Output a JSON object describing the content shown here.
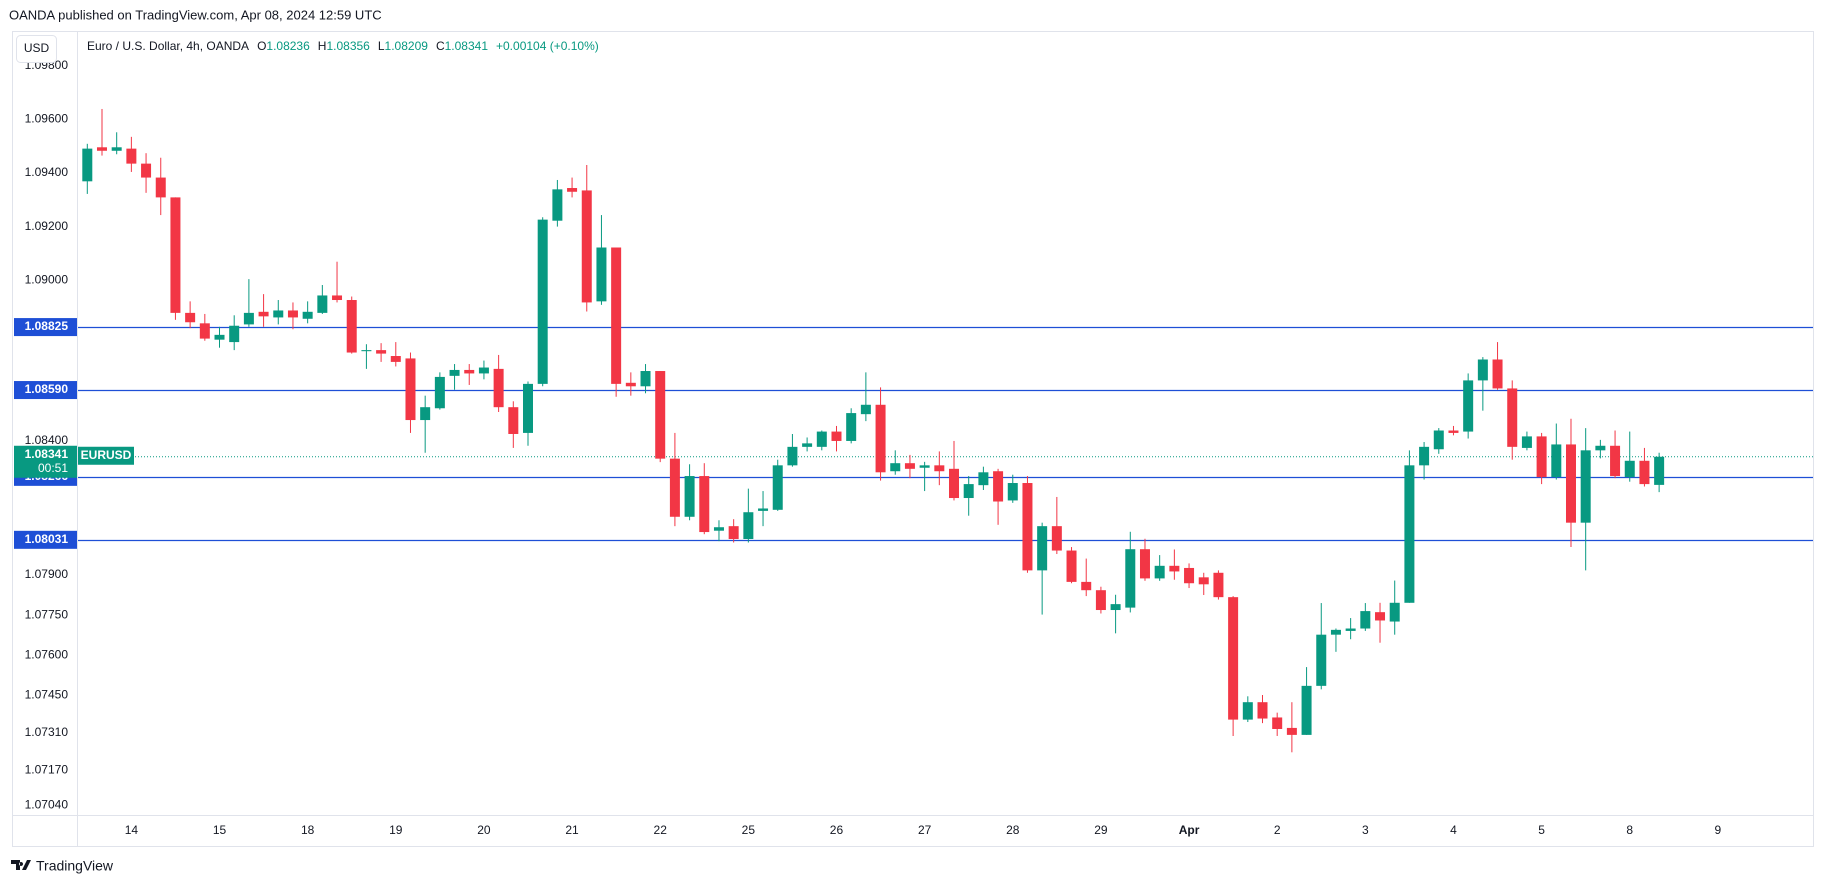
{
  "header": {
    "published": "OANDA published on TradingView.com, Apr 08, 2024 12:59 UTC"
  },
  "currency_button": "USD",
  "footer": {
    "brand": "TradingView"
  },
  "chart_data": {
    "type": "candlestick",
    "title": "Euro / U.S. Dollar, 4h, OANDA",
    "legend": {
      "o_label": "O",
      "o": 1.08236,
      "h_label": "H",
      "h": 1.08356,
      "l_label": "L",
      "l": 1.08209,
      "c_label": "C",
      "c": 1.08341,
      "change": "+0.00104 (+0.10%)"
    },
    "up_color": "#089981",
    "down_color": "#f23645",
    "level_color": "#1e4fd6",
    "ylim": [
      1.07004,
      1.0993
    ],
    "yticks": [
      {
        "value": 1.098,
        "label": "1.09800"
      },
      {
        "value": 1.096,
        "label": "1.09600"
      },
      {
        "value": 1.094,
        "label": "1.09400"
      },
      {
        "value": 1.092,
        "label": "1.09200"
      },
      {
        "value": 1.09,
        "label": "1.09000"
      },
      {
        "value": 1.084,
        "label": "1.08400"
      },
      {
        "value": 1.079,
        "label": "1.07900"
      },
      {
        "value": 1.0775,
        "label": "1.07750"
      },
      {
        "value": 1.076,
        "label": "1.07600"
      },
      {
        "value": 1.0745,
        "label": "1.07450"
      },
      {
        "value": 1.0731,
        "label": "1.07310"
      },
      {
        "value": 1.0717,
        "label": "1.07170"
      },
      {
        "value": 1.0704,
        "label": "1.07040"
      }
    ],
    "levels": [
      1.08825,
      {
        "value": 1.0859,
        "label": "1.08590"
      },
      1.08266,
      1.08031
    ],
    "last_price": 1.08341,
    "countdown": "00:51",
    "symbol": "EURUSD",
    "categories": [
      null,
      null,
      null,
      "14",
      null,
      null,
      null,
      null,
      null,
      "15",
      null,
      null,
      null,
      null,
      null,
      "18",
      null,
      null,
      null,
      null,
      null,
      "19",
      null,
      null,
      null,
      null,
      null,
      "20",
      null,
      null,
      null,
      null,
      null,
      "21",
      null,
      null,
      null,
      null,
      null,
      "22",
      null,
      null,
      null,
      null,
      null,
      "25",
      null,
      null,
      null,
      null,
      null,
      "26",
      null,
      null,
      null,
      null,
      null,
      "27",
      null,
      null,
      null,
      null,
      null,
      "28",
      null,
      null,
      null,
      null,
      null,
      "29",
      null,
      null,
      null,
      null,
      null,
      "Apr",
      null,
      null,
      null,
      null,
      null,
      "2",
      null,
      null,
      null,
      null,
      null,
      "3",
      null,
      null,
      null,
      null,
      null,
      "4",
      null,
      null,
      null,
      null,
      null,
      "5",
      null,
      null,
      null,
      null,
      null,
      "8",
      null,
      null,
      null,
      null,
      null,
      "9",
      null,
      null
    ],
    "open": [
      1.09369,
      1.09496,
      1.09483,
      1.09491,
      1.09435,
      1.09383,
      1.09309,
      1.08878,
      1.08839,
      1.08778,
      1.08769,
      1.08835,
      1.08882,
      1.08861,
      1.08887,
      1.08856,
      1.08878,
      1.08943,
      1.08926,
      1.08735,
      1.08739,
      1.08717,
      1.08708,
      1.08478,
      1.08522,
      1.08643,
      1.08665,
      1.08652,
      1.08669,
      1.08526,
      1.0843,
      1.08613,
      1.09222,
      1.09344,
      1.09335,
      1.08921,
      1.09122,
      1.08617,
      1.08604,
      1.08661,
      1.08334,
      1.08117,
      1.08269,
      1.08065,
      1.08082,
      1.08034,
      1.08139,
      1.08143,
      1.08309,
      1.08378,
      1.08378,
      1.08435,
      1.084,
      1.085,
      1.08535,
      1.08287,
      1.08317,
      1.083,
      1.08309,
      1.08296,
      1.08187,
      1.08235,
      1.08287,
      1.08178,
      1.08243,
      1.07917,
      1.08082,
      1.07991,
      1.07874,
      1.07843,
      1.07769,
      1.07778,
      1.07996,
      1.07887,
      1.07934,
      1.07926,
      1.07891,
      1.07908,
      1.07817,
      1.0736,
      1.07425,
      1.07368,
      1.07329,
      1.07303,
      1.07486,
      1.07677,
      1.07691,
      1.077,
      1.07761,
      1.07726,
      1.07796,
      1.08309,
      1.08369,
      1.08439,
      1.08435,
      1.08626,
      1.08704,
      1.08596,
      1.08374,
      1.08417,
      1.08265,
      1.08387,
      1.08095,
      1.08365,
      1.08382,
      1.08265,
      1.08326,
      1.08236,
      null,
      null,
      null,
      null,
      null,
      null
    ],
    "high": [
      1.09509,
      1.09639,
      1.09552,
      1.09535,
      1.09474,
      1.09457,
      1.09309,
      1.08921,
      1.08874,
      1.08826,
      1.08869,
      1.09004,
      1.08948,
      1.08926,
      1.08917,
      1.08921,
      1.08982,
      1.09069,
      1.08939,
      1.08761,
      1.08765,
      1.08769,
      1.0873,
      1.08569,
      1.08656,
      1.08687,
      1.08687,
      1.087,
      1.08721,
      1.08548,
      1.08622,
      1.09235,
      1.09374,
      1.09383,
      1.0943,
      1.09243,
      1.09122,
      1.08656,
      1.08687,
      1.08661,
      1.0843,
      1.08313,
      1.08317,
      1.08104,
      1.08108,
      1.08222,
      1.08213,
      1.0833,
      1.08426,
      1.08413,
      1.08439,
      1.08456,
      1.08522,
      1.08656,
      1.086,
      1.08365,
      1.08348,
      1.08322,
      1.08361,
      1.084,
      1.08269,
      1.08304,
      1.08296,
      1.08274,
      1.08269,
      1.08095,
      1.08191,
      1.08004,
      1.07961,
      1.07856,
      1.07826,
      1.08061,
      1.08035,
      1.07974,
      1.07995,
      1.07943,
      1.07908,
      1.07917,
      1.07821,
      1.07447,
      1.07452,
      1.07386,
      1.07425,
      1.07556,
      1.07795,
      1.077,
      1.07739,
      1.07795,
      1.07796,
      1.07879,
      1.08365,
      1.08396,
      1.08448,
      1.08456,
      1.08652,
      1.08713,
      1.08769,
      1.08626,
      1.08435,
      1.0843,
      1.08465,
      1.08483,
      1.08448,
      1.08404,
      1.08439,
      1.08435,
      1.08374,
      1.08356,
      null,
      null,
      null,
      null,
      null,
      null
    ],
    "low": [
      1.09322,
      1.09465,
      1.0947,
      1.09404,
      1.09326,
      1.09243,
      1.08852,
      1.08821,
      1.08774,
      1.08748,
      1.08739,
      1.08826,
      1.08826,
      1.08835,
      1.08817,
      1.08839,
      1.08874,
      1.08917,
      1.08726,
      1.08669,
      1.08695,
      1.08678,
      1.0843,
      1.08356,
      1.08517,
      1.08591,
      1.08609,
      1.0863,
      1.08508,
      1.08374,
      1.08382,
      1.08604,
      1.092,
      1.09309,
      1.08883,
      1.08908,
      1.08565,
      1.08569,
      1.08578,
      1.08321,
      1.08082,
      1.08104,
      1.08052,
      1.08026,
      1.08021,
      1.08021,
      1.08082,
      1.08139,
      1.08304,
      1.08361,
      1.08365,
      1.08361,
      1.08391,
      1.08474,
      1.08252,
      1.08274,
      1.08261,
      1.08213,
      1.08235,
      1.08178,
      1.08121,
      1.08217,
      1.08087,
      1.08169,
      1.07908,
      1.07752,
      1.07978,
      1.07869,
      1.07821,
      1.07756,
      1.07682,
      1.0776,
      1.07878,
      1.07878,
      1.07882,
      1.07851,
      1.07825,
      1.07808,
      1.07299,
      1.07351,
      1.07347,
      1.07299,
      1.07238,
      1.07303,
      1.07473,
      1.07613,
      1.0766,
      1.07691,
      1.07647,
      1.07677,
      1.07796,
      1.08256,
      1.08352,
      1.08421,
      1.08409,
      1.08513,
      1.08591,
      1.0833,
      1.08365,
      1.08239,
      1.08256,
      1.08004,
      1.07917,
      1.08335,
      1.08261,
      1.08248,
      1.0823,
      1.08209,
      null,
      null,
      null,
      null,
      null,
      null
    ],
    "close": [
      1.09491,
      1.09483,
      1.09496,
      1.09435,
      1.09383,
      1.09309,
      1.08878,
      1.08843,
      1.08782,
      1.08796,
      1.0883,
      1.08878,
      1.08865,
      1.08887,
      1.08861,
      1.08882,
      1.08943,
      1.08926,
      1.0873,
      1.08739,
      1.08726,
      1.08695,
      1.08478,
      1.08526,
      1.08639,
      1.08665,
      1.08652,
      1.08674,
      1.08526,
      1.08426,
      1.08613,
      1.09226,
      1.09339,
      1.0933,
      1.08917,
      1.09122,
      1.08613,
      1.08604,
      1.08661,
      1.08334,
      1.08117,
      1.08269,
      1.0806,
      1.08078,
      1.08034,
      1.08134,
      1.08148,
      1.08309,
      1.08378,
      1.08391,
      1.08435,
      1.084,
      1.08504,
      1.08535,
      1.08283,
      1.08317,
      1.08296,
      1.08309,
      1.08287,
      1.08187,
      1.08239,
      1.08283,
      1.08174,
      1.08243,
      1.07917,
      1.08082,
      1.07991,
      1.07874,
      1.07843,
      1.07769,
      1.07791,
      1.07996,
      1.07887,
      1.07934,
      1.07913,
      1.07869,
      1.07865,
      1.07817,
      1.0736,
      1.07425,
      1.07364,
      1.07325,
      1.07303,
      1.07486,
      1.07677,
      1.07695,
      1.077,
      1.07765,
      1.0773,
      1.07796,
      1.08309,
      1.08378,
      1.08439,
      1.0843,
      1.08626,
      1.08704,
      1.08596,
      1.08378,
      1.08417,
      1.08265,
      1.08387,
      1.08095,
      1.08365,
      1.08382,
      1.08269,
      1.08326,
      1.08239,
      1.08341,
      null,
      null,
      null,
      null,
      null,
      null
    ]
  }
}
